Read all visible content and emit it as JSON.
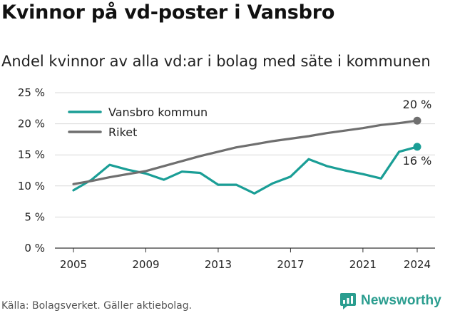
{
  "header": {
    "title": "Kvinnor på vd-poster i Vansbro",
    "subtitle": "Andel kvinnor av alla vd:ar i bolag med säte i kommunen"
  },
  "footer": {
    "source": "Källa: Bolagsverket. Gäller aktiebolag.",
    "brand": "Newsworthy"
  },
  "colors": {
    "vansbro": "#1a9e96",
    "riket": "#6f6f6f",
    "brand": "#2a9d8f"
  },
  "chart_data": {
    "type": "line",
    "title": "Kvinnor på vd-poster i Vansbro",
    "subtitle": "Andel kvinnor av alla vd:ar i bolag med säte i kommunen",
    "xlabel": "",
    "ylabel": "",
    "x": [
      2005,
      2006,
      2007,
      2008,
      2009,
      2010,
      2011,
      2012,
      2013,
      2014,
      2015,
      2016,
      2017,
      2018,
      2019,
      2020,
      2021,
      2022,
      2023,
      2024
    ],
    "xticks": [
      2005,
      2009,
      2013,
      2017,
      2021,
      2024
    ],
    "yticks": [
      0,
      5,
      10,
      15,
      20,
      25
    ],
    "ytick_labels": [
      "0 %",
      "5 %",
      "10 %",
      "15 %",
      "20 %",
      "25 %"
    ],
    "ylim": [
      0,
      25
    ],
    "grid": "horizontal",
    "legend_position": "top-left",
    "series": [
      {
        "name": "Vansbro kommun",
        "color": "#1a9e96",
        "values": [
          9.3,
          11.0,
          13.4,
          12.6,
          12.0,
          11.0,
          12.3,
          12.1,
          10.2,
          10.2,
          8.8,
          10.4,
          11.5,
          14.3,
          13.2,
          12.5,
          11.9,
          11.2,
          15.5,
          16.3
        ],
        "end_label": "16 %"
      },
      {
        "name": "Riket",
        "color": "#6f6f6f",
        "values": [
          10.3,
          10.8,
          11.4,
          11.9,
          12.4,
          13.2,
          14.0,
          14.8,
          15.5,
          16.2,
          16.7,
          17.2,
          17.6,
          18.0,
          18.5,
          18.9,
          19.3,
          19.8,
          20.1,
          20.5
        ],
        "end_label": "20 %"
      }
    ]
  }
}
